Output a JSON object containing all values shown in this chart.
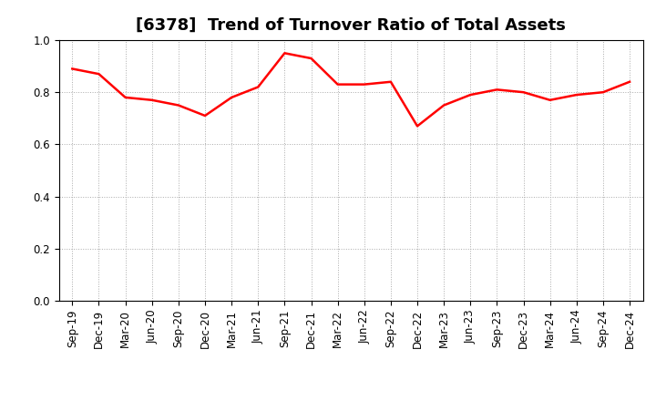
{
  "title": "[6378]  Trend of Turnover Ratio of Total Assets",
  "x_labels": [
    "Sep-19",
    "Dec-19",
    "Mar-20",
    "Jun-20",
    "Sep-20",
    "Dec-20",
    "Mar-21",
    "Jun-21",
    "Sep-21",
    "Dec-21",
    "Mar-22",
    "Jun-22",
    "Sep-22",
    "Dec-22",
    "Mar-23",
    "Jun-23",
    "Sep-23",
    "Dec-23",
    "Mar-24",
    "Jun-24",
    "Sep-24",
    "Dec-24"
  ],
  "y_values": [
    0.89,
    0.87,
    0.78,
    0.77,
    0.75,
    0.71,
    0.78,
    0.82,
    0.95,
    0.93,
    0.83,
    0.83,
    0.84,
    0.67,
    0.75,
    0.79,
    0.81,
    0.8,
    0.77,
    0.79,
    0.8,
    0.84
  ],
  "line_color": "#ff0000",
  "line_width": 1.8,
  "background_color": "#ffffff",
  "grid_color": "#aaaaaa",
  "ylim": [
    0.0,
    1.0
  ],
  "yticks": [
    0.0,
    0.2,
    0.4,
    0.6,
    0.8,
    1.0
  ],
  "title_fontsize": 13,
  "tick_fontsize": 8.5
}
